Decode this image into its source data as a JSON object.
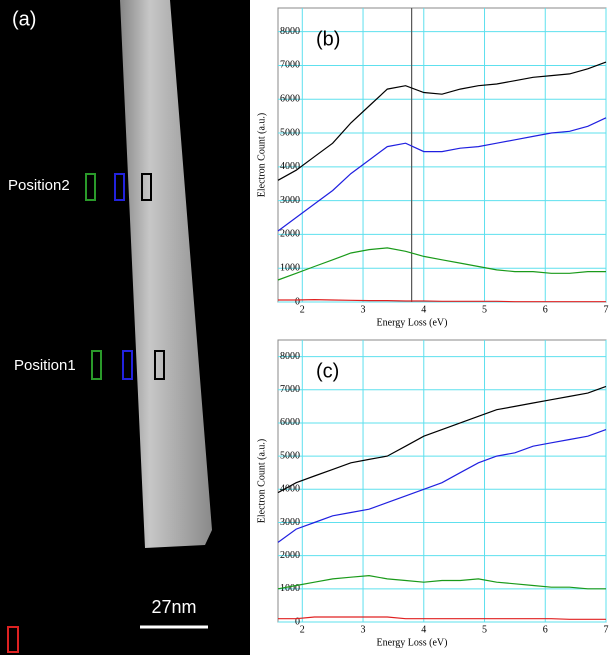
{
  "image_panel": {
    "label": "(a)",
    "positions": [
      "Position2",
      "Position1"
    ],
    "scale_bar": "27nm"
  },
  "chart_data": [
    {
      "type": "line",
      "panel_label": "(b)",
      "xlabel": "Energy Loss (eV)",
      "ylabel": "Electron Count (a.u.)",
      "xlim": [
        1.6,
        7
      ],
      "xticks": [
        2,
        3,
        4,
        5,
        6,
        7
      ],
      "ylim": [
        0,
        8700
      ],
      "yticks": [
        0,
        1000,
        2000,
        3000,
        4000,
        5000,
        6000,
        7000,
        8000
      ],
      "grid": true,
      "marker_x": 3.8,
      "x": [
        1.6,
        1.9,
        2.2,
        2.5,
        2.8,
        3.1,
        3.4,
        3.7,
        4.0,
        4.3,
        4.6,
        4.9,
        5.2,
        5.5,
        5.8,
        6.1,
        6.4,
        6.7,
        7.0
      ],
      "series": [
        {
          "color": "#000000",
          "values": [
            3600,
            3900,
            4300,
            4700,
            5300,
            5800,
            6300,
            6400,
            6200,
            6150,
            6300,
            6400,
            6450,
            6550,
            6650,
            6700,
            6750,
            6900,
            7100
          ]
        },
        {
          "color": "#2020e0",
          "values": [
            2100,
            2500,
            2900,
            3300,
            3800,
            4200,
            4600,
            4700,
            4450,
            4450,
            4550,
            4600,
            4700,
            4800,
            4900,
            5000,
            5050,
            5200,
            5450
          ]
        },
        {
          "color": "#1a9a1a",
          "values": [
            650,
            850,
            1050,
            1250,
            1450,
            1550,
            1600,
            1500,
            1350,
            1250,
            1150,
            1050,
            950,
            900,
            900,
            850,
            850,
            900,
            900
          ]
        },
        {
          "color": "#e02020",
          "values": [
            60,
            60,
            70,
            60,
            50,
            40,
            40,
            30,
            30,
            20,
            20,
            20,
            20,
            10,
            10,
            10,
            10,
            10,
            10
          ]
        }
      ]
    },
    {
      "type": "line",
      "panel_label": "(c)",
      "xlabel": "Energy Loss (eV)",
      "ylabel": "Electron Count (a.u.)",
      "xlim": [
        1.6,
        7
      ],
      "xticks": [
        2,
        3,
        4,
        5,
        6,
        7
      ],
      "ylim": [
        0,
        8500
      ],
      "yticks": [
        0,
        1000,
        2000,
        3000,
        4000,
        5000,
        6000,
        7000,
        8000
      ],
      "grid": true,
      "x": [
        1.6,
        1.9,
        2.2,
        2.5,
        2.8,
        3.1,
        3.4,
        3.7,
        4.0,
        4.3,
        4.6,
        4.9,
        5.2,
        5.5,
        5.8,
        6.1,
        6.4,
        6.7,
        7.0
      ],
      "series": [
        {
          "color": "#000000",
          "values": [
            3900,
            4200,
            4400,
            4600,
            4800,
            4900,
            5000,
            5300,
            5600,
            5800,
            6000,
            6200,
            6400,
            6500,
            6600,
            6700,
            6800,
            6900,
            7100
          ]
        },
        {
          "color": "#2020e0",
          "values": [
            2400,
            2800,
            3000,
            3200,
            3300,
            3400,
            3600,
            3800,
            4000,
            4200,
            4500,
            4800,
            5000,
            5100,
            5300,
            5400,
            5500,
            5600,
            5800
          ]
        },
        {
          "color": "#1a9a1a",
          "values": [
            1000,
            1100,
            1200,
            1300,
            1350,
            1400,
            1300,
            1250,
            1200,
            1250,
            1250,
            1300,
            1200,
            1150,
            1100,
            1050,
            1050,
            1000,
            1000
          ]
        },
        {
          "color": "#e02020",
          "values": [
            100,
            100,
            150,
            150,
            150,
            150,
            150,
            100,
            100,
            100,
            100,
            100,
            100,
            100,
            100,
            100,
            80,
            80,
            80
          ]
        }
      ]
    }
  ]
}
